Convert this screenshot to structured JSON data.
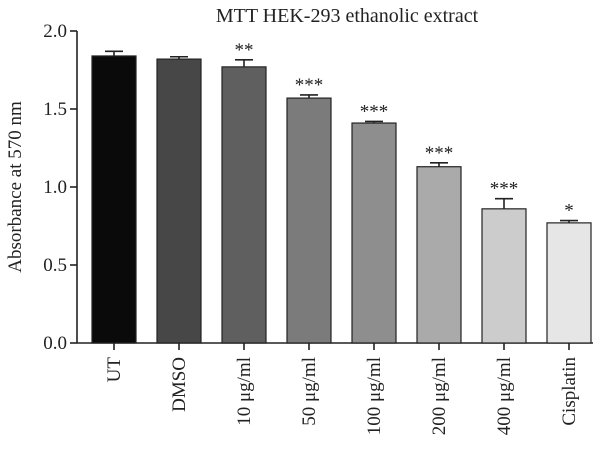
{
  "chart_data": {
    "type": "bar",
    "title": "MTT HEK-293 ethanolic extract",
    "ylabel": "Absorbance at 570 nm",
    "xlabel": "",
    "ylim": [
      0,
      2.0
    ],
    "yticks": [
      "0.0",
      "0.5",
      "1.0",
      "1.5",
      "2.0"
    ],
    "categories": [
      "UT",
      "DMSO",
      "10 μg/ml",
      "50 μg/ml",
      "100 μg/ml",
      "200 μg/ml",
      "400 μg/ml",
      "Cisplatin"
    ],
    "values": [
      1.84,
      1.82,
      1.77,
      1.57,
      1.41,
      1.13,
      0.86,
      0.77
    ],
    "errors": [
      0.03,
      0.015,
      0.045,
      0.02,
      0.01,
      0.025,
      0.065,
      0.015
    ],
    "significance": [
      "",
      "",
      "**",
      "***",
      "***",
      "***",
      "***",
      "*"
    ],
    "colors": [
      "#0a0a0a",
      "#474747",
      "#5f5f5f",
      "#7b7b7b",
      "#8e8e8e",
      "#aaaaaa",
      "#cccccc",
      "#e6e6e6"
    ]
  }
}
